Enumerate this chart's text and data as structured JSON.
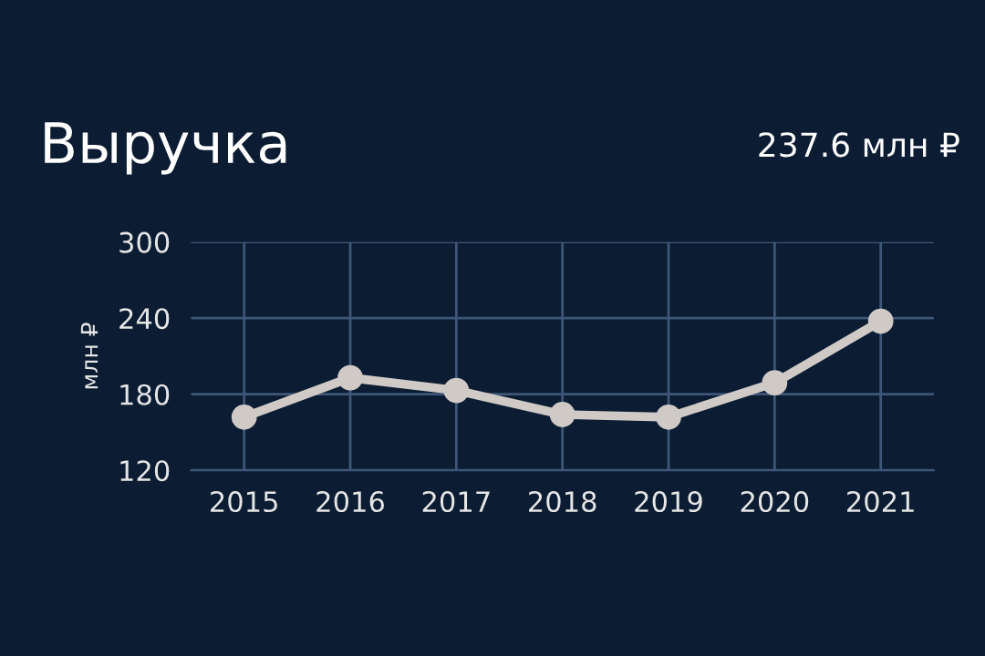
{
  "chart_data": {
    "type": "line",
    "title": "Выручка",
    "ylabel": "млн ₽",
    "annotations": [
      "237.6 млн ₽"
    ],
    "categories": [
      "2015",
      "2016",
      "2017",
      "2018",
      "2019",
      "2020",
      "2021"
    ],
    "series": [
      {
        "color": "#cfcac6",
        "values": [
          162,
          193,
          183,
          164,
          162,
          189,
          237.6
        ]
      }
    ],
    "ylim": [
      120,
      300
    ],
    "yticks": [
      120,
      180,
      240,
      300
    ],
    "grid": true,
    "marker": "circle",
    "line_style": "solid"
  }
}
